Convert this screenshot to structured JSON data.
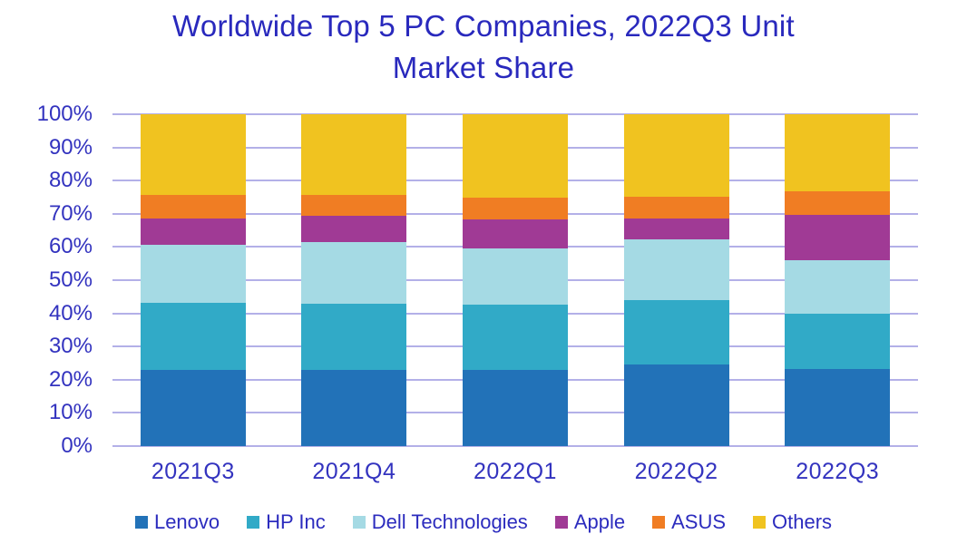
{
  "title": {
    "text": "Worldwide Top 5 PC Companies, 2022Q3 Unit Market Share",
    "lines": [
      "Worldwide Top 5 PC Companies, 2022Q3 Unit",
      "Market Share"
    ]
  },
  "chart_data": {
    "type": "bar",
    "subtype": "stacked-100-percent",
    "title": "Worldwide Top 5 PC Companies, 2022Q3 Unit Market Share",
    "xlabel": "",
    "ylabel": "",
    "unit": "percent",
    "categories": [
      "2021Q3",
      "2021Q4",
      "2022Q1",
      "2022Q2",
      "2022Q3"
    ],
    "series": [
      {
        "name": "Lenovo",
        "color": "#2272B8",
        "values": [
          22.9,
          23.0,
          23.0,
          24.6,
          23.1
        ]
      },
      {
        "name": "HP Inc",
        "color": "#31AAC7",
        "values": [
          20.3,
          20.0,
          19.6,
          19.5,
          16.7
        ]
      },
      {
        "name": "Dell Technologies",
        "color": "#A5DAE4",
        "values": [
          17.5,
          18.4,
          17.1,
          18.2,
          16.3
        ]
      },
      {
        "name": "Apple",
        "color": "#A03A95",
        "values": [
          7.8,
          8.1,
          8.6,
          6.4,
          13.7
        ]
      },
      {
        "name": "ASUS",
        "color": "#F07D23",
        "values": [
          7.3,
          6.3,
          6.6,
          6.4,
          7.1
        ]
      },
      {
        "name": "Others",
        "color": "#F0C320",
        "values": [
          24.2,
          24.2,
          25.1,
          24.9,
          23.1
        ]
      }
    ],
    "ylim": [
      0,
      100
    ],
    "y_ticks": [
      "0%",
      "10%",
      "20%",
      "30%",
      "40%",
      "50%",
      "60%",
      "70%",
      "80%",
      "90%",
      "100%"
    ],
    "grid": "horizontal",
    "legend_position": "bottom"
  },
  "colors": {
    "title_text": "#2929BD",
    "axis_text": "#3333BF",
    "legend_text": "#2C2CBE",
    "gridline": "#B3B0E8",
    "background": "#FFFFFF"
  }
}
